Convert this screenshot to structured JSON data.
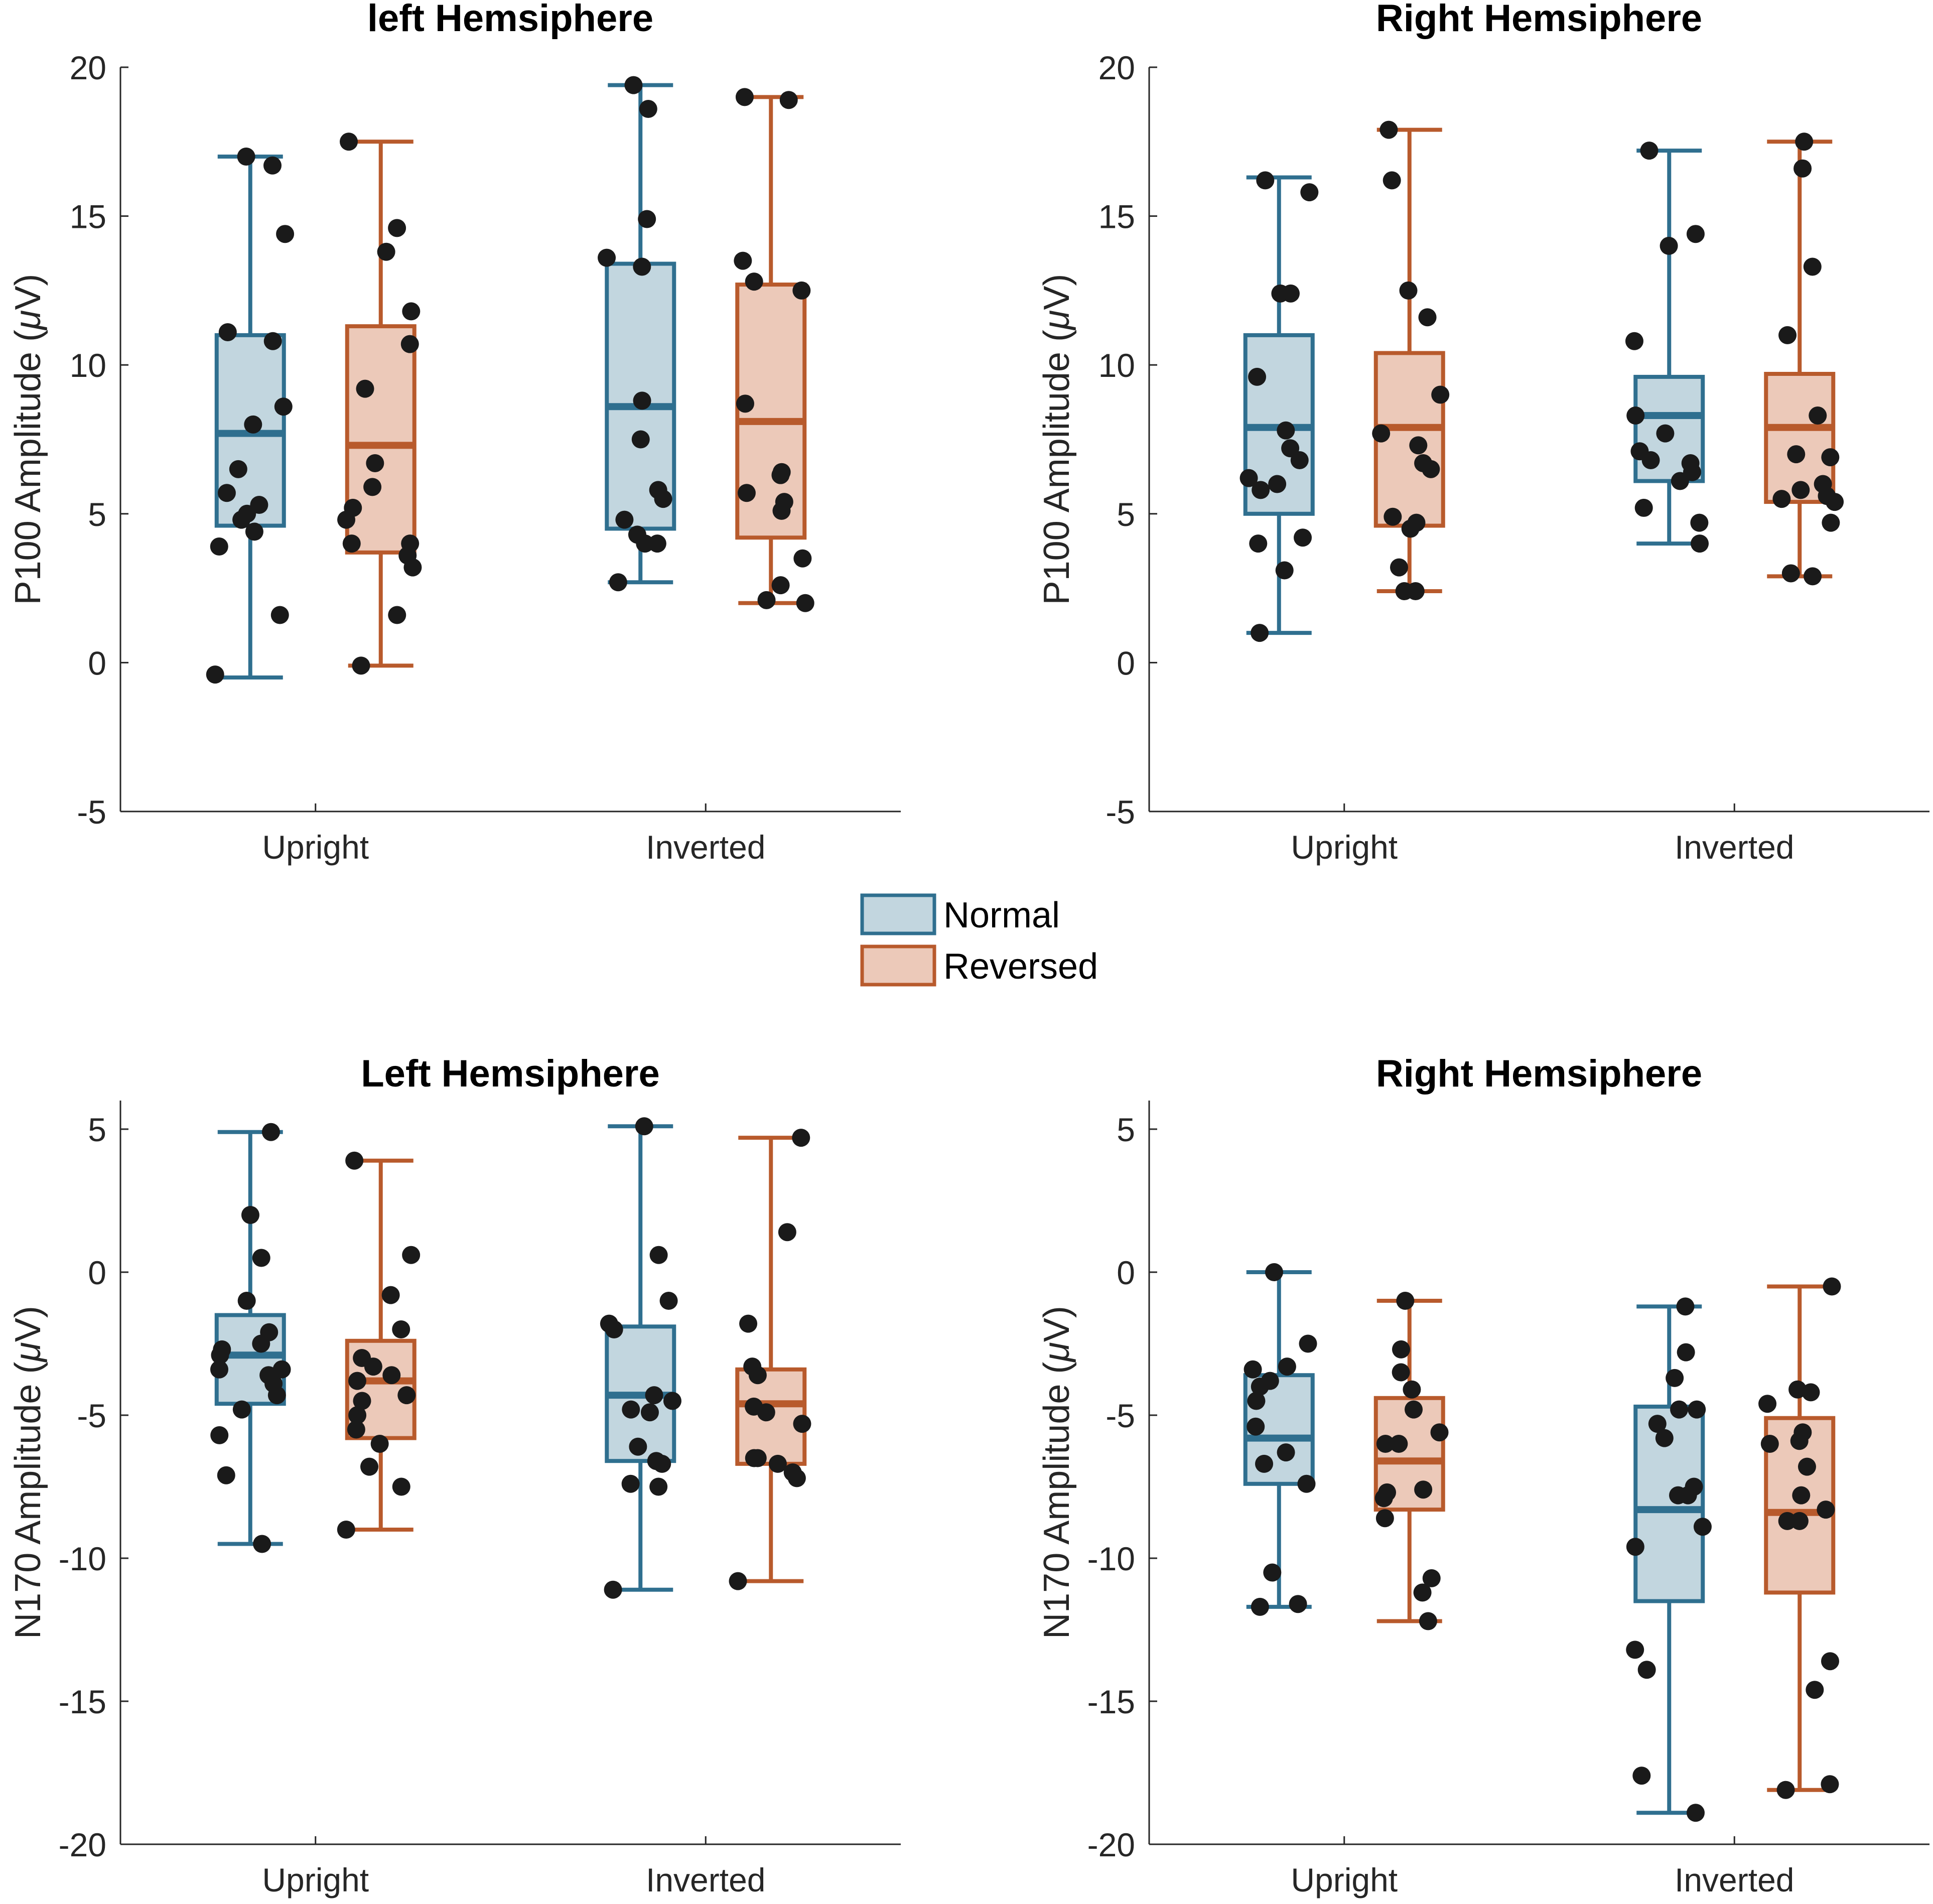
{
  "legend": {
    "items": [
      {
        "label": "Normal",
        "color": "#2f6f8f",
        "fill": "#c2d6df"
      },
      {
        "label": "Reversed",
        "color": "#b85a2c",
        "fill": "#ecc9b9"
      }
    ]
  },
  "chart_data": [
    {
      "type": "box",
      "title": "left Hemsiphere",
      "ylabel": "P100 Amplitude (μV)",
      "ylabel_prefix": "P100 Amplitude (",
      "ylabel_unit_symbol": "μ",
      "ylabel_suffix": "V)",
      "ylim": [
        -5,
        20
      ],
      "yticks": [
        -5,
        0,
        5,
        10,
        15,
        20
      ],
      "categories": [
        "Upright",
        "Inverted"
      ],
      "series": [
        {
          "name": "Normal",
          "boxes": [
            {
              "category": "Upright",
              "whisker_low": -0.5,
              "q1": 4.6,
              "median": 7.7,
              "q3": 11.0,
              "whisker_high": 17.0,
              "points": [
                -0.4,
                1.6,
                3.9,
                4.4,
                4.8,
                5.0,
                5.3,
                5.7,
                6.5,
                8.0,
                8.6,
                10.8,
                11.1,
                14.4,
                16.7,
                17.0
              ]
            },
            {
              "category": "Inverted",
              "whisker_low": 2.7,
              "q1": 4.5,
              "median": 8.6,
              "q3": 13.4,
              "whisker_high": 19.4,
              "points": [
                2.7,
                4.0,
                4.0,
                4.3,
                4.8,
                5.5,
                5.8,
                7.5,
                8.8,
                13.3,
                13.6,
                14.9,
                18.6,
                19.4
              ]
            }
          ]
        },
        {
          "name": "Reversed",
          "boxes": [
            {
              "category": "Upright",
              "whisker_low": -0.1,
              "q1": 3.7,
              "median": 7.3,
              "q3": 11.3,
              "whisker_high": 17.5,
              "points": [
                -0.1,
                1.6,
                3.2,
                3.6,
                4.0,
                4.0,
                4.8,
                5.2,
                5.9,
                6.7,
                9.2,
                10.7,
                11.8,
                13.8,
                14.6,
                17.5
              ]
            },
            {
              "category": "Inverted",
              "whisker_low": 2.0,
              "q1": 4.2,
              "median": 8.1,
              "q3": 12.7,
              "whisker_high": 19.0,
              "points": [
                2.0,
                2.1,
                2.6,
                3.5,
                5.1,
                5.4,
                5.7,
                6.3,
                6.4,
                8.7,
                12.5,
                12.8,
                13.5,
                18.9,
                19.0
              ]
            }
          ]
        }
      ]
    },
    {
      "type": "box",
      "title": "Right Hemsiphere",
      "ylabel": "P100 Amplitude (μV)",
      "ylabel_prefix": "P100 Amplitude (",
      "ylabel_unit_symbol": "μ",
      "ylabel_suffix": "V)",
      "ylim": [
        -5,
        20
      ],
      "yticks": [
        -5,
        0,
        5,
        10,
        15,
        20
      ],
      "categories": [
        "Upright",
        "Inverted"
      ],
      "series": [
        {
          "name": "Normal",
          "boxes": [
            {
              "category": "Upright",
              "whisker_low": 1.0,
              "q1": 5.0,
              "median": 7.9,
              "q3": 11.0,
              "whisker_high": 16.3,
              "points": [
                1.0,
                3.1,
                4.0,
                4.2,
                5.8,
                6.0,
                6.2,
                6.8,
                7.2,
                7.8,
                9.6,
                12.4,
                12.4,
                15.8,
                16.2
              ]
            },
            {
              "category": "Inverted",
              "whisker_low": 4.0,
              "q1": 6.1,
              "median": 8.3,
              "q3": 9.6,
              "whisker_high": 17.2,
              "points": [
                4.0,
                4.7,
                5.2,
                6.1,
                6.4,
                6.7,
                6.8,
                7.1,
                7.7,
                8.3,
                10.8,
                14.0,
                14.4,
                17.2
              ]
            }
          ]
        },
        {
          "name": "Reversed",
          "boxes": [
            {
              "category": "Upright",
              "whisker_low": 2.4,
              "q1": 4.6,
              "median": 7.9,
              "q3": 10.4,
              "whisker_high": 17.9,
              "points": [
                2.4,
                2.4,
                3.2,
                4.5,
                4.7,
                4.9,
                6.5,
                6.7,
                7.3,
                7.7,
                9.0,
                11.6,
                12.5,
                16.2,
                17.9
              ]
            },
            {
              "category": "Inverted",
              "whisker_low": 2.9,
              "q1": 5.4,
              "median": 7.9,
              "q3": 9.7,
              "whisker_high": 17.5,
              "points": [
                2.9,
                3.0,
                4.7,
                5.4,
                5.5,
                5.6,
                5.8,
                6.0,
                6.9,
                7.0,
                8.3,
                11.0,
                13.3,
                16.6,
                17.5
              ]
            }
          ]
        }
      ]
    },
    {
      "type": "box",
      "title": "Left Hemsiphere",
      "ylabel": "N170 Amplitude (μV)",
      "ylabel_prefix": "N170 Amplitude (",
      "ylabel_unit_symbol": "μ",
      "ylabel_suffix": "V)",
      "ylim": [
        -20,
        6
      ],
      "yticks": [
        -20,
        -15,
        -10,
        -5,
        0,
        5
      ],
      "categories": [
        "Upright",
        "Inverted"
      ],
      "series": [
        {
          "name": "Normal",
          "boxes": [
            {
              "category": "Upright",
              "whisker_low": -9.5,
              "q1": -4.6,
              "median": -2.9,
              "q3": -1.5,
              "whisker_high": 4.9,
              "points": [
                -9.5,
                -7.1,
                -5.7,
                -4.8,
                -4.3,
                -3.9,
                -3.6,
                -3.4,
                -3.4,
                -2.9,
                -2.7,
                -2.5,
                -2.1,
                -1.0,
                0.5,
                2.0,
                4.9
              ]
            },
            {
              "category": "Inverted",
              "whisker_low": -11.1,
              "q1": -6.6,
              "median": -4.3,
              "q3": -1.9,
              "whisker_high": 5.1,
              "points": [
                -11.1,
                -7.5,
                -7.4,
                -6.7,
                -6.6,
                -6.1,
                -4.9,
                -4.8,
                -4.5,
                -4.3,
                -2.0,
                -1.8,
                -1.0,
                0.6,
                5.1
              ]
            }
          ]
        },
        {
          "name": "Reversed",
          "boxes": [
            {
              "category": "Upright",
              "whisker_low": -9.0,
              "q1": -5.8,
              "median": -3.8,
              "q3": -2.4,
              "whisker_high": 3.9,
              "points": [
                -9.0,
                -7.5,
                -6.8,
                -6.0,
                -5.5,
                -5.0,
                -4.5,
                -4.3,
                -3.8,
                -3.6,
                -3.3,
                -3.0,
                -2.0,
                -0.8,
                0.6,
                3.9
              ]
            },
            {
              "category": "Inverted",
              "whisker_low": -10.8,
              "q1": -6.7,
              "median": -4.6,
              "q3": -3.4,
              "whisker_high": 4.7,
              "points": [
                -10.8,
                -7.2,
                -7.0,
                -6.7,
                -6.5,
                -6.5,
                -5.3,
                -4.9,
                -4.7,
                -3.6,
                -3.3,
                -1.8,
                1.4,
                4.7
              ]
            }
          ]
        }
      ]
    },
    {
      "type": "box",
      "title": "Right Hemsiphere",
      "ylabel": "N170 Amplitude (μV)",
      "ylabel_prefix": "N170 Amplitude (",
      "ylabel_unit_symbol": "μ",
      "ylabel_suffix": "V)",
      "ylim": [
        -20,
        6
      ],
      "yticks": [
        -20,
        -15,
        -10,
        -5,
        0,
        5
      ],
      "categories": [
        "Upright",
        "Inverted"
      ],
      "series": [
        {
          "name": "Normal",
          "boxes": [
            {
              "category": "Upright",
              "whisker_low": -11.7,
              "q1": -7.4,
              "median": -5.8,
              "q3": -3.6,
              "whisker_high": 0.0,
              "points": [
                -11.7,
                -11.6,
                -10.5,
                -7.4,
                -6.7,
                -6.3,
                -5.4,
                -4.5,
                -4.0,
                -3.8,
                -3.4,
                -3.3,
                -2.5,
                0.0
              ]
            },
            {
              "category": "Inverted",
              "whisker_low": -18.9,
              "q1": -11.5,
              "median": -8.3,
              "q3": -4.7,
              "whisker_high": -1.2,
              "points": [
                -18.9,
                -17.6,
                -13.9,
                -13.2,
                -9.6,
                -8.9,
                -7.8,
                -7.8,
                -7.5,
                -5.8,
                -5.3,
                -4.8,
                -4.8,
                -3.7,
                -2.8,
                -1.2
              ]
            }
          ]
        },
        {
          "name": "Reversed",
          "boxes": [
            {
              "category": "Upright",
              "whisker_low": -12.2,
              "q1": -8.3,
              "median": -6.6,
              "q3": -4.4,
              "whisker_high": -1.0,
              "points": [
                -12.2,
                -11.2,
                -10.7,
                -8.6,
                -7.9,
                -7.7,
                -7.6,
                -6.0,
                -6.0,
                -5.6,
                -4.8,
                -4.1,
                -3.5,
                -2.7,
                -1.0
              ]
            },
            {
              "category": "Inverted",
              "whisker_low": -18.1,
              "q1": -11.2,
              "median": -8.4,
              "q3": -5.1,
              "whisker_high": -0.5,
              "points": [
                -18.1,
                -17.9,
                -14.6,
                -13.6,
                -8.7,
                -8.7,
                -8.3,
                -7.8,
                -6.8,
                -6.0,
                -5.9,
                -5.6,
                -4.6,
                -4.2,
                -4.1,
                -0.5
              ]
            }
          ]
        }
      ]
    }
  ]
}
